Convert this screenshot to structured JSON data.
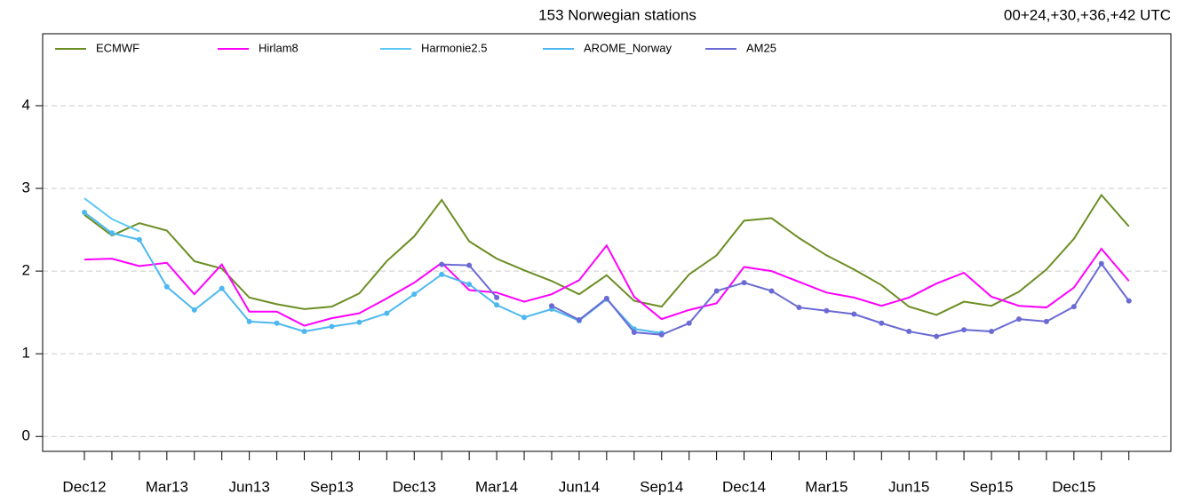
{
  "chart_data": {
    "type": "line",
    "title": "153 Norwegian stations",
    "subtitle": "00+24,+30,+36,+42 UTC",
    "categories": [
      "Dec12",
      null,
      null,
      "Mar13",
      null,
      null,
      "Jun13",
      null,
      null,
      "Sep13",
      null,
      null,
      "Dec13",
      null,
      null,
      "Mar14",
      null,
      null,
      "Jun14",
      null,
      null,
      "Sep14",
      null,
      null,
      "Dec14",
      null,
      null,
      "Mar15",
      null,
      null,
      "Jun15",
      null,
      null,
      "Sep15",
      null,
      null,
      "Dec15",
      null,
      null
    ],
    "series": [
      {
        "name": "ECMWF",
        "color": "#6b8e23",
        "markers": false,
        "values": [
          2.68,
          2.43,
          2.58,
          2.49,
          2.12,
          2.03,
          1.68,
          1.6,
          1.54,
          1.57,
          1.73,
          2.12,
          2.42,
          2.86,
          2.36,
          2.15,
          2.01,
          1.88,
          1.72,
          1.95,
          1.64,
          1.57,
          1.96,
          2.19,
          2.61,
          2.64,
          2.4,
          2.19,
          2.02,
          1.83,
          1.57,
          1.47,
          1.63,
          1.58,
          1.75,
          2.02,
          2.39,
          2.92,
          2.54
        ]
      },
      {
        "name": "Hirlam8",
        "color": "#ff00ff",
        "markers": false,
        "values": [
          2.14,
          2.15,
          2.06,
          2.1,
          1.72,
          2.08,
          1.51,
          1.51,
          1.34,
          1.43,
          1.49,
          1.67,
          1.86,
          2.1,
          1.77,
          1.74,
          1.63,
          1.72,
          1.89,
          2.31,
          1.69,
          1.42,
          1.53,
          1.61,
          2.05,
          2.0,
          1.87,
          1.74,
          1.68,
          1.58,
          1.68,
          1.85,
          1.98,
          1.69,
          1.58,
          1.56,
          1.8,
          2.27,
          1.88
        ]
      },
      {
        "name": "Harmonie2.5",
        "color": "#5fc8f5",
        "markers": false,
        "values": [
          2.88,
          2.63,
          2.48,
          null,
          null,
          null,
          null,
          null,
          null,
          null,
          null,
          null,
          null,
          null,
          null,
          null,
          null,
          null,
          null,
          null,
          null,
          null,
          null,
          null,
          null,
          null,
          null,
          null,
          null,
          null,
          null,
          null,
          null,
          null,
          null,
          null,
          null,
          null,
          null
        ]
      },
      {
        "name": "AROME_Norway",
        "color": "#4db8f0",
        "markers": true,
        "values": [
          2.71,
          2.46,
          2.38,
          1.81,
          1.53,
          1.79,
          1.39,
          1.37,
          1.27,
          1.33,
          1.38,
          1.49,
          1.72,
          1.96,
          1.84,
          1.59,
          1.44,
          1.54,
          1.4,
          1.66,
          1.3,
          1.25,
          null,
          null,
          null,
          null,
          null,
          null,
          null,
          null,
          null,
          null,
          null,
          null,
          null,
          null,
          null,
          null,
          null
        ]
      },
      {
        "name": "AM25",
        "color": "#6a6ad4",
        "markers": true,
        "values": [
          null,
          null,
          null,
          null,
          null,
          null,
          null,
          null,
          null,
          null,
          null,
          null,
          null,
          2.08,
          2.07,
          1.68,
          null,
          1.58,
          1.41,
          1.67,
          1.26,
          1.23,
          1.37,
          1.76,
          1.86,
          1.76,
          1.56,
          1.52,
          1.48,
          1.37,
          1.27,
          1.21,
          1.29,
          1.27,
          1.42,
          1.39,
          1.57,
          2.09,
          1.64
        ]
      }
    ],
    "ylim": [
      -0.18,
      4.87
    ],
    "yticks": [
      0,
      1,
      2,
      3,
      4
    ],
    "grid": true
  }
}
